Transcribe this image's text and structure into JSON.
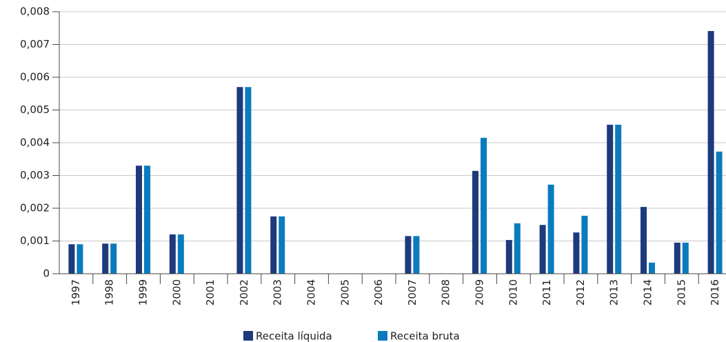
{
  "chart_data": {
    "type": "bar",
    "categories": [
      "1997",
      "1998",
      "1999",
      "2000",
      "2001",
      "2002",
      "2003",
      "2004",
      "2005",
      "2006",
      "2007",
      "2008",
      "2009",
      "2010",
      "2011",
      "2012",
      "2013",
      "2014",
      "2015",
      "2016"
    ],
    "series": [
      {
        "name": "Receita líquida",
        "color": "#1d3a7c",
        "values": [
          0.0009,
          0.00092,
          0.0033,
          0.0012,
          0,
          0.0057,
          0.00175,
          0,
          0,
          0,
          0.00115,
          0,
          0.00314,
          0.00103,
          0.00149,
          0.00126,
          0.00455,
          0.00204,
          0.00095,
          0.00741
        ]
      },
      {
        "name": "Receita bruta",
        "color": "#0a7bbd",
        "values": [
          0.0009,
          0.00092,
          0.0033,
          0.0012,
          0,
          0.0057,
          0.00175,
          0,
          0,
          0,
          0.00115,
          0,
          0.00415,
          0.00154,
          0.00272,
          0.00177,
          0.00455,
          0.00034,
          0.00095,
          0.00373
        ]
      }
    ],
    "ylim": [
      0,
      0.008
    ],
    "yticks": [
      0,
      {
        "value": 0.001,
        "label": "0,001"
      },
      {
        "value": 0.002,
        "label": "0,002"
      },
      {
        "value": 0.003,
        "label": "0,003"
      },
      {
        "value": 0.004,
        "label": "0,004"
      },
      {
        "value": 0.005,
        "label": "0,005"
      },
      {
        "value": 0.006,
        "label": "0,006"
      },
      {
        "value": 0.007,
        "label": "0,007"
      },
      {
        "value": 0.008,
        "label": "0,008"
      }
    ],
    "grid": true
  }
}
